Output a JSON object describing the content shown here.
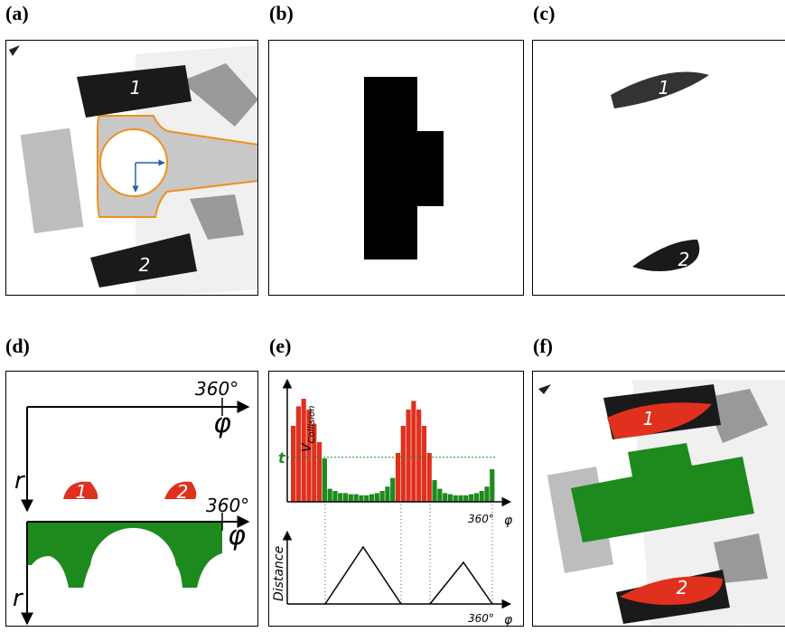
{
  "panels": [
    {
      "label": "(a)",
      "markers": [
        "1",
        "2"
      ]
    },
    {
      "label": "(b)"
    },
    {
      "label": "(c)",
      "markers": [
        "1",
        "2"
      ]
    },
    {
      "label": "(d)",
      "axis_top": {
        "angle_label": "360°",
        "x_label": "φ",
        "r_label": "r"
      },
      "axis_bottom": {
        "angle_label": "360°",
        "x_label": "φ",
        "r_label": "r"
      },
      "markers": [
        "1",
        "2"
      ]
    },
    {
      "label": "(e)",
      "histogram": {
        "y_label": "V",
        "y_label_sub": "Collision",
        "threshold_label": "t",
        "x_end_label": "360°",
        "x_label": "φ",
        "threshold": 41,
        "values": [
          70,
          88,
          95,
          85,
          72,
          55,
          40,
          12,
          10,
          8,
          8,
          7,
          7,
          6,
          6,
          7,
          8,
          10,
          14,
          22,
          45,
          70,
          85,
          93,
          85,
          70,
          45,
          20,
          12,
          8,
          7,
          6,
          6,
          6,
          7,
          8,
          10,
          14,
          30
        ]
      },
      "distance": {
        "y_label": "Distance",
        "x_end_label": "360°",
        "x_label": "φ"
      }
    },
    {
      "label": "(f)",
      "markers": [
        "1",
        "2"
      ]
    }
  ]
}
